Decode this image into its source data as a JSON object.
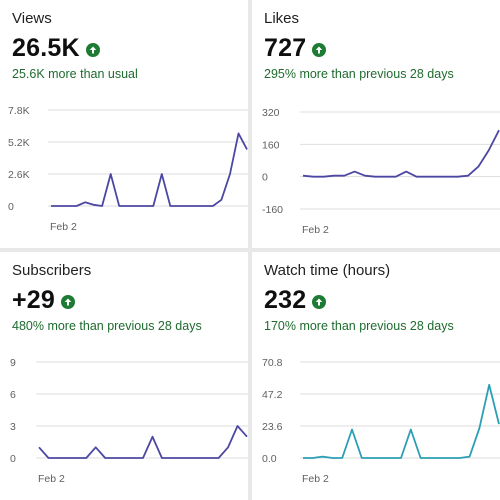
{
  "cards": [
    {
      "id": "views",
      "label": "Views",
      "value": "26.5K",
      "note": "25.6K more than usual",
      "trend_icon": "arrow-up-circle-icon",
      "color": "#4b47a3",
      "chart_data": {
        "type": "line",
        "y_ticks": [
          "7.8K",
          "5.2K",
          "2.6K",
          "0"
        ],
        "ylim": [
          0,
          7800
        ],
        "x_label": "Feb 2",
        "values": [
          0,
          0,
          0,
          0,
          300,
          100,
          0,
          2600,
          0,
          0,
          0,
          0,
          0,
          2600,
          0,
          0,
          0,
          0,
          0,
          0,
          500,
          2600,
          5900,
          4600
        ]
      }
    },
    {
      "id": "likes",
      "label": "Likes",
      "value": "727",
      "note": "295% more than previous 28 days",
      "trend_icon": "arrow-up-circle-icon",
      "color": "#4b47a3",
      "chart_data": {
        "type": "line",
        "y_ticks": [
          "320",
          "160",
          "0",
          "-160"
        ],
        "ylim": [
          -160,
          320
        ],
        "x_label": "Feb 2",
        "values": [
          5,
          0,
          0,
          5,
          5,
          25,
          5,
          0,
          0,
          0,
          25,
          0,
          0,
          0,
          0,
          0,
          5,
          50,
          130,
          230
        ]
      }
    },
    {
      "id": "subscribers",
      "label": "Subscribers",
      "value": "+29",
      "note": "480% more than previous 28 days",
      "trend_icon": "arrow-up-circle-icon",
      "color": "#4b47a3",
      "chart_data": {
        "type": "line",
        "y_ticks": [
          "9",
          "6",
          "3",
          "0"
        ],
        "ylim": [
          0,
          9
        ],
        "x_label": "Feb 2",
        "values": [
          1,
          0,
          0,
          0,
          0,
          0,
          1,
          0,
          0,
          0,
          0,
          0,
          2,
          0,
          0,
          0,
          0,
          0,
          0,
          0,
          1,
          3,
          2
        ]
      }
    },
    {
      "id": "watch",
      "label": "Watch time (hours)",
      "value": "232",
      "note": "170% more than previous 28 days",
      "trend_icon": "arrow-up-circle-icon",
      "color": "#2a9fb3",
      "chart_data": {
        "type": "line",
        "y_ticks": [
          "70.8",
          "47.2",
          "23.6",
          "0.0"
        ],
        "ylim": [
          0,
          70.8
        ],
        "x_label": "Feb 2",
        "values": [
          0,
          0,
          1,
          0,
          0,
          21,
          0,
          0,
          0,
          0,
          0,
          21,
          0,
          0,
          0,
          0,
          0,
          1,
          22,
          54,
          25
        ]
      }
    }
  ]
}
